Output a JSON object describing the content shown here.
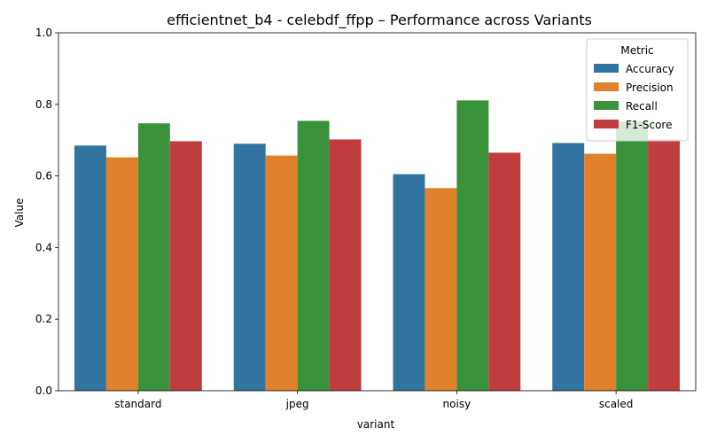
{
  "chart_data": {
    "type": "bar",
    "title": "efficientnet_b4 - celebdf_ffpp – Performance across Variants",
    "xlabel": "variant",
    "ylabel": "Value",
    "ylim": [
      0,
      1
    ],
    "yticks": [
      "0.0",
      "0.2",
      "0.4",
      "0.6",
      "0.8",
      "1.0"
    ],
    "categories": [
      "standard",
      "jpeg",
      "noisy",
      "scaled"
    ],
    "series": [
      {
        "name": "Accuracy",
        "color": "#3274a1",
        "values": [
          0.685,
          0.69,
          0.605,
          0.692
        ]
      },
      {
        "name": "Precision",
        "color": "#e1812c",
        "values": [
          0.652,
          0.657,
          0.566,
          0.662
        ]
      },
      {
        "name": "Recall",
        "color": "#3a923a",
        "values": [
          0.747,
          0.754,
          0.811,
          0.752
        ]
      },
      {
        "name": "F1-Score",
        "color": "#c03d3e",
        "values": [
          0.697,
          0.702,
          0.665,
          0.702
        ]
      }
    ],
    "legend": {
      "title": "Metric",
      "placement": "top-right"
    },
    "grid": false
  }
}
